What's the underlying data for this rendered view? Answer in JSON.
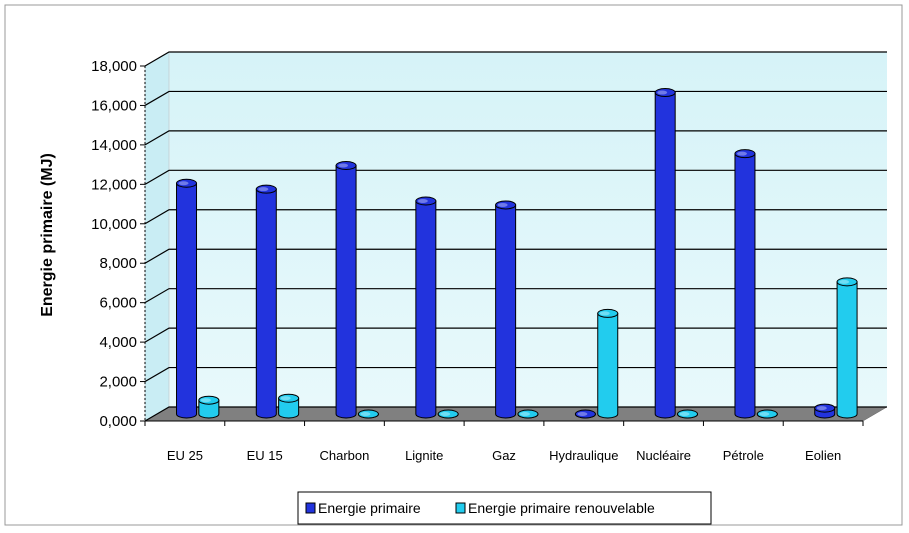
{
  "chart_data": {
    "type": "bar",
    "title": "",
    "xlabel": "",
    "ylabel": "Energie primaire  (MJ)",
    "ylim": [
      0,
      18000
    ],
    "yticks": [
      "0,000",
      "2,000",
      "4,000",
      "6,000",
      "8,000",
      "10,000",
      "12,000",
      "14,000",
      "16,000",
      "18,000"
    ],
    "grid": true,
    "legend_position": "bottom",
    "categories": [
      "EU 25",
      "EU 15",
      "Charbon",
      "Lignite",
      "Gaz",
      "Hydraulique",
      "Nucléaire",
      "Pétrole",
      "Eolien"
    ],
    "series": [
      {
        "name": "Energie primaire",
        "color": "#2233dd",
        "values": [
          11700,
          11400,
          12600,
          10800,
          10600,
          0,
          16300,
          13200,
          300
        ]
      },
      {
        "name": "Energie primaire renouvelable",
        "color": "#22ccee",
        "values": [
          700,
          800,
          0,
          0,
          0,
          5100,
          0,
          0,
          6700
        ]
      }
    ]
  }
}
